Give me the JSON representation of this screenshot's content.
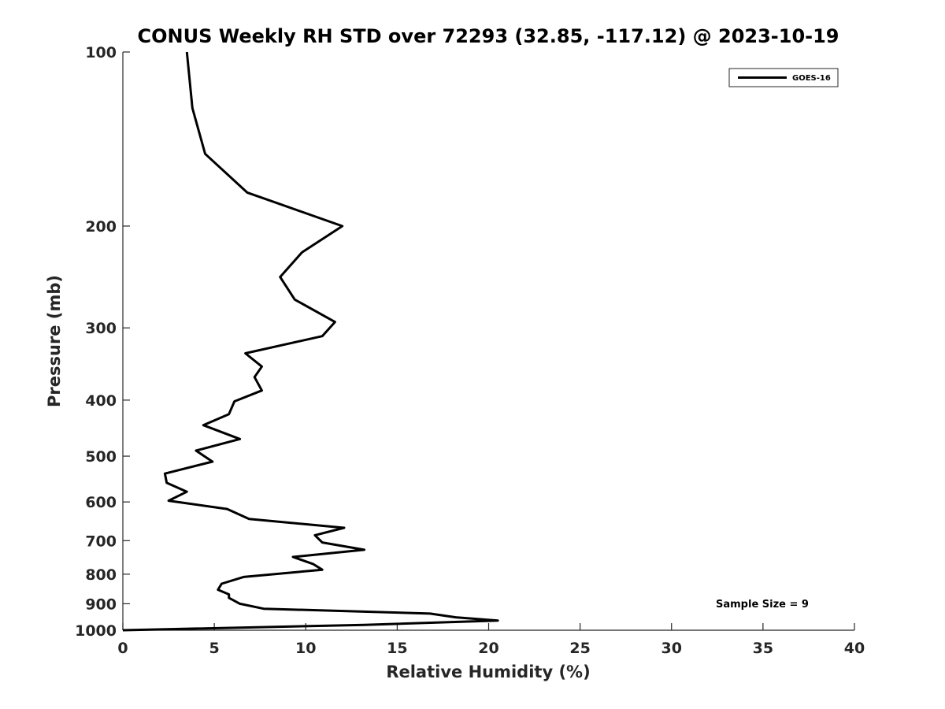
{
  "chart_data": {
    "type": "line",
    "title": "CONUS Weekly RH STD over 72293 (32.85, -117.12) @ 2023-10-19",
    "xlabel": "Relative Humidity (%)",
    "ylabel": "Pressure (mb)",
    "xlim": [
      0,
      40
    ],
    "ylim": [
      100,
      1000
    ],
    "y_scale": "log",
    "y_reversed": true,
    "x_ticks": [
      0,
      5,
      10,
      15,
      20,
      25,
      30,
      35,
      40
    ],
    "y_ticks": [
      100,
      200,
      300,
      400,
      500,
      600,
      700,
      800,
      900,
      1000
    ],
    "grid": false,
    "legend_position": "top-right",
    "annotation": "Sample Size = 9",
    "series": [
      {
        "name": "GOES-16",
        "color": "#000000",
        "x": [
          3.5,
          3.8,
          4.5,
          6.8,
          12.0,
          9.8,
          8.6,
          9.4,
          11.6,
          10.9,
          6.7,
          7.6,
          7.2,
          7.6,
          6.1,
          5.8,
          4.4,
          6.4,
          4.0,
          4.9,
          2.3,
          2.4,
          3.5,
          2.5,
          5.7,
          6.9,
          12.1,
          10.5,
          10.9,
          13.2,
          9.3,
          10.4,
          10.9,
          6.6,
          5.4,
          5.2,
          5.8,
          5.8,
          6.4,
          7.7,
          16.8,
          18.2,
          20.5,
          13.2,
          0.0
        ],
        "y": [
          100,
          125,
          150,
          175,
          200,
          222,
          245,
          268,
          293,
          310,
          332,
          350,
          365,
          385,
          402,
          423,
          442,
          467,
          489,
          511,
          536,
          556,
          576,
          597,
          617,
          642,
          665,
          685,
          705,
          726,
          747,
          768,
          786,
          809,
          831,
          851,
          867,
          879,
          900,
          918,
          936,
          950,
          962,
          979,
          1000
        ]
      }
    ]
  }
}
